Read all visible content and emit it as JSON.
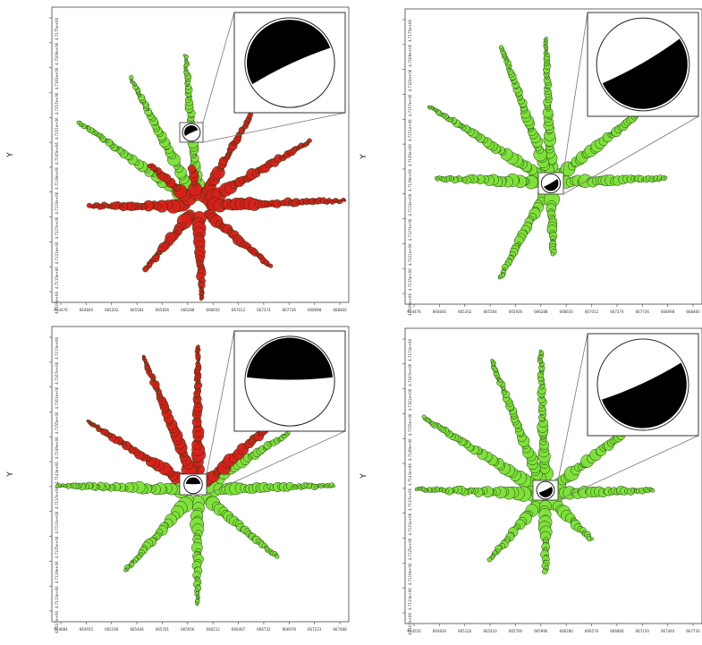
{
  "chart_data": [
    {
      "type": "scatter",
      "ylabel": "Y",
      "x_ticks": [
        "664476",
        "664840",
        "665202",
        "665564",
        "665926",
        "666288",
        "666650",
        "667012",
        "667374",
        "667736",
        "668098",
        "668460"
      ],
      "y_ticks": [
        "4.7175e+06",
        "4.7169e+06",
        "4.7163e+06",
        "4.7157e+06",
        "4.7151e+06",
        "4.7145e+06",
        "4.7139e+06",
        "4.7133e+06",
        "4.7127e+06",
        "4.7121e+06",
        "4.7115e+06",
        "4.7109e+06"
      ],
      "center": [
        666470,
        4714100.0
      ],
      "rays": [
        {
          "angle": 95,
          "length": 1.0,
          "color": "#7ee23a"
        },
        {
          "angle": 118,
          "length": 0.96,
          "color": "#7ee23a"
        },
        {
          "angle": 145,
          "length": 0.97,
          "color": "#7ee23a"
        },
        {
          "angle": 60,
          "length": 0.7,
          "color": "#d8201a"
        },
        {
          "angle": 30,
          "length": 0.85,
          "color": "#d8201a"
        },
        {
          "angle": 2,
          "length": 0.97,
          "color": "#d8201a"
        },
        {
          "angle": -40,
          "length": 0.62,
          "color": "#d8201a"
        },
        {
          "angle": -88,
          "length": 0.62,
          "color": "#d8201a"
        },
        {
          "angle": -130,
          "length": 0.55,
          "color": "#d8201a"
        },
        {
          "angle": 180,
          "length": 0.72,
          "color": "#d8201a"
        },
        {
          "angle": 140,
          "length": 0.42,
          "color": "#d8201a"
        },
        {
          "angle": 100,
          "length": 0.25,
          "color": "#d8201a"
        }
      ],
      "beachball": {
        "compression_start_deg": 210,
        "compression_end_deg": 20
      }
    },
    {
      "type": "scatter",
      "ylabel": "Y",
      "x_ticks": [
        "664476",
        "664840",
        "665202",
        "665564",
        "665926",
        "666288",
        "666650",
        "667012",
        "667374",
        "667736",
        "668098",
        "668460"
      ],
      "y_ticks": [
        "4.7175e+06",
        "4.7169e+06",
        "4.7163e+06",
        "4.7157e+06",
        "4.7151e+06",
        "4.7145e+06",
        "4.7139e+06",
        "4.7133e+06",
        "4.7127e+06",
        "4.7121e+06",
        "4.7115e+06",
        "4.7109e+06"
      ],
      "center": [
        666470,
        4714100.0
      ],
      "rays": [
        {
          "angle": 92,
          "length": 1.0,
          "color": "#7ee23a"
        },
        {
          "angle": 110,
          "length": 1.0,
          "color": "#7ee23a"
        },
        {
          "angle": 148,
          "length": 1.0,
          "color": "#7ee23a"
        },
        {
          "angle": 38,
          "length": 1.0,
          "color": "#7ee23a"
        },
        {
          "angle": 2,
          "length": 0.8,
          "color": "#7ee23a"
        },
        {
          "angle": 178,
          "length": 0.8,
          "color": "#7ee23a"
        },
        {
          "angle": -118,
          "length": 0.75,
          "color": "#7ee23a"
        },
        {
          "angle": -88,
          "length": 0.5,
          "color": "#7ee23a"
        }
      ],
      "beachball": {
        "compression_start_deg": 35,
        "compression_end_deg": 205
      }
    },
    {
      "type": "scatter",
      "ylabel": "Y",
      "x_ticks": [
        "664684",
        "664935",
        "665190",
        "665446",
        "665701",
        "665956",
        "666212",
        "666467",
        "666722",
        "666978",
        "667233",
        "667488"
      ],
      "y_ticks": [
        "4.7173e+06",
        "4.7167e+06",
        "4.7161e+06",
        "4.7155e+06",
        "4.7149e+06",
        "4.7143e+06",
        "4.7137e+06",
        "4.7131e+06",
        "4.7125e+06",
        "4.7119e+06",
        "4.7113e+06",
        "4.7107e+06"
      ],
      "center": [
        666160,
        4714300.0
      ],
      "rays": [
        {
          "angle": 90,
          "length": 1.0,
          "color": "#d8201a"
        },
        {
          "angle": 112,
          "length": 1.0,
          "color": "#d8201a"
        },
        {
          "angle": 148,
          "length": 0.9,
          "color": "#d8201a"
        },
        {
          "angle": 32,
          "length": 0.75,
          "color": "#7ee23a"
        },
        {
          "angle": 2,
          "length": 0.95,
          "color": "#7ee23a"
        },
        {
          "angle": 178,
          "length": 0.98,
          "color": "#7ee23a"
        },
        {
          "angle": -40,
          "length": 0.72,
          "color": "#7ee23a"
        },
        {
          "angle": -90,
          "length": 0.8,
          "color": "#7ee23a"
        },
        {
          "angle": -132,
          "length": 0.75,
          "color": "#7ee23a"
        },
        {
          "angle": 42,
          "length": 1.0,
          "color": "#d8201a"
        }
      ],
      "beachball": {
        "compression_start_deg": 175,
        "compression_end_deg": 5
      }
    },
    {
      "type": "scatter",
      "ylabel": "Y",
      "x_ticks": [
        "664550",
        "664830",
        "665120",
        "665410",
        "665700",
        "665990",
        "666280",
        "666570",
        "666860",
        "667150",
        "667440",
        "667730"
      ],
      "y_ticks": [
        "4.7173e+06",
        "4.7167e+06",
        "4.7161e+06",
        "4.7155e+06",
        "4.7149e+06",
        "4.7143e+06",
        "4.7137e+06",
        "4.7131e+06",
        "4.7125e+06",
        "4.7119e+06",
        "4.7113e+06",
        "4.7107e+06"
      ],
      "center": [
        666440,
        4714100.0
      ],
      "rays": [
        {
          "angle": 92,
          "length": 1.0,
          "color": "#7ee23a"
        },
        {
          "angle": 112,
          "length": 1.0,
          "color": "#7ee23a"
        },
        {
          "angle": 148,
          "length": 1.0,
          "color": "#7ee23a"
        },
        {
          "angle": 38,
          "length": 1.0,
          "color": "#7ee23a"
        },
        {
          "angle": 2,
          "length": 0.75,
          "color": "#7ee23a"
        },
        {
          "angle": 178,
          "length": 0.9,
          "color": "#7ee23a"
        },
        {
          "angle": -130,
          "length": 0.6,
          "color": "#7ee23a"
        },
        {
          "angle": -45,
          "length": 0.45,
          "color": "#7ee23a"
        },
        {
          "angle": -90,
          "length": 0.55,
          "color": "#7ee23a"
        }
      ],
      "beachball": {
        "compression_start_deg": 30,
        "compression_end_deg": 200
      }
    }
  ]
}
